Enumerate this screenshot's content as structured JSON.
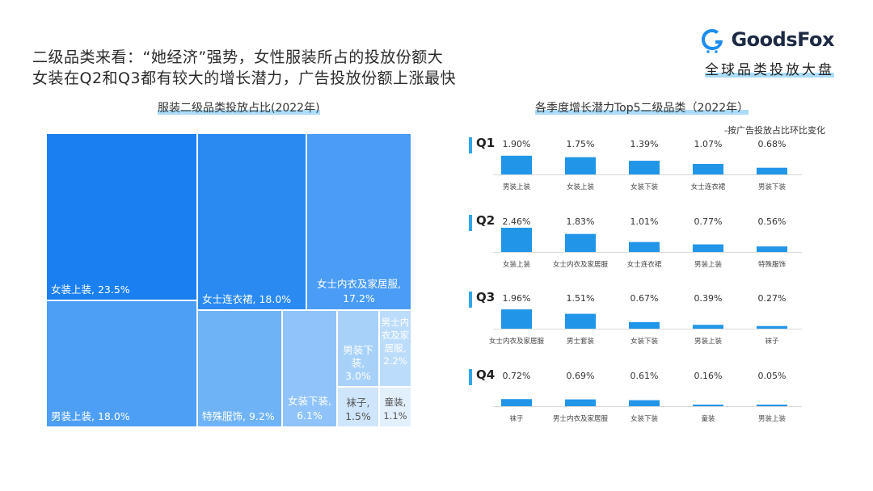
{
  "headline": {
    "line1": "二级品类来看：“她经济”强势，女性服装所占的投放份额大",
    "line2": "女装在Q2和Q3都有较大的增长潜力，广告投放份额上涨最快"
  },
  "logo": {
    "brand": "GoodsFox",
    "subtitle": "全球品类投放大盘"
  },
  "treemap": {
    "title": "服装二级品类投放占比(2022年)",
    "cells": [
      {
        "label": "女装上装, 23.5%",
        "value": 23.5,
        "color": "#1a7ff0"
      },
      {
        "label": "男装上装, 18.0%",
        "value": 18.0,
        "color": "#4d9ff5"
      },
      {
        "label": "女士连衣裙, 18.0%",
        "value": 18.0,
        "color": "#2a8af2"
      },
      {
        "label": "女士内衣及家居服, 17.2%",
        "value": 17.2,
        "color": "#4a9cf5"
      },
      {
        "label": "特殊服饰, 9.2%",
        "value": 9.2,
        "color": "#6fb3f7"
      },
      {
        "label": "女装下装, 6.1%",
        "value": 6.1,
        "color": "#8fc3f9"
      },
      {
        "label": "男装下装, 3.0%",
        "value": 3.0,
        "color": "#a8d1fa"
      },
      {
        "label": "男士内衣及家居服, 2.2%",
        "value": 2.2,
        "color": "#bcdcfb"
      },
      {
        "label": "袜子, 1.5%",
        "value": 1.5,
        "color": "#cfe5fc"
      },
      {
        "label": "童装, 1.1%",
        "value": 1.1,
        "color": "#e2effd"
      }
    ]
  },
  "chart_data": [
    {
      "type": "treemap",
      "title": "服装二级品类投放占比(2022年)",
      "categories": [
        "女装上装",
        "男装上装",
        "女士连衣裙",
        "女士内衣及家居服",
        "特殊服饰",
        "女装下装",
        "男装下装",
        "男士内衣及家居服",
        "袜子",
        "童装"
      ],
      "values": [
        23.5,
        18.0,
        18.0,
        17.2,
        9.2,
        6.1,
        3.0,
        2.2,
        1.5,
        1.1
      ],
      "unit": "%"
    },
    {
      "type": "bar",
      "title": "各季度增长潜力Top5二级品类（2022年）",
      "subtitle": "-按广告投放占比环比变化",
      "color": "#2196e8",
      "panels": [
        {
          "name": "Q1",
          "categories": [
            "男装上装",
            "女装上装",
            "女装下装",
            "女士连衣裙",
            "男装下装"
          ],
          "values": [
            1.9,
            1.75,
            1.39,
            1.07,
            0.68
          ],
          "labels": [
            "1.90%",
            "1.75%",
            "1.39%",
            "1.07%",
            "0.68%"
          ]
        },
        {
          "name": "Q2",
          "categories": [
            "女装上装",
            "女士内衣及家居服",
            "女士连衣裙",
            "男装上装",
            "特殊服饰"
          ],
          "values": [
            2.46,
            1.83,
            1.01,
            0.77,
            0.56
          ],
          "labels": [
            "2.46%",
            "1.83%",
            "1.01%",
            "0.77%",
            "0.56%"
          ]
        },
        {
          "name": "Q3",
          "categories": [
            "女士内衣及家居服",
            "男士套装",
            "女装下装",
            "男装上装",
            "袜子"
          ],
          "values": [
            1.96,
            1.51,
            0.67,
            0.39,
            0.27
          ],
          "labels": [
            "1.96%",
            "1.51%",
            "0.67%",
            "0.39%",
            "0.27%"
          ]
        },
        {
          "name": "Q4",
          "categories": [
            "袜子",
            "男士内衣及家居服",
            "女装下装",
            "童装",
            "男装上装"
          ],
          "values": [
            0.72,
            0.69,
            0.61,
            0.16,
            0.05
          ],
          "labels": [
            "0.72%",
            "0.69%",
            "0.61%",
            "0.16%",
            "0.05%"
          ]
        }
      ]
    }
  ]
}
